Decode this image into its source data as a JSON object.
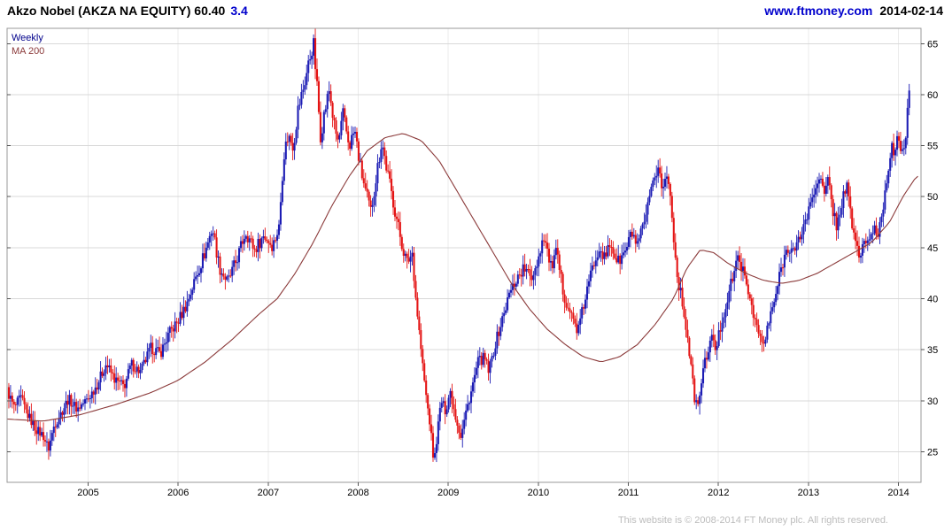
{
  "header": {
    "title": "Akzo Nobel (AKZA NA EQUITY) 60.40",
    "change": "3.4",
    "link": "www.ftmoney.com",
    "date": "2014-02-14"
  },
  "legend": {
    "weekly": "Weekly",
    "ma": "MA 200"
  },
  "footer": {
    "copyright": "This website is © 2008-2014 FT Money plc. All rights reserved."
  },
  "colors": {
    "up": "#1c1cb4",
    "down": "#e41414",
    "ma": "#8b3a3a",
    "grid_h": "#d8d8d8",
    "grid_v": "#ebebeb",
    "border": "#9a9a9a",
    "axis_text": "#000000",
    "tick": "#555555"
  },
  "chart_data": {
    "type": "candlestick",
    "title": "Akzo Nobel (AKZA NA EQUITY) weekly candlestick chart with 200-period moving average",
    "instrument": "AKZA NA EQUITY",
    "last_price": 60.4,
    "change": 3.4,
    "interval": "Weekly",
    "x_range": [
      2004.1,
      2014.25
    ],
    "y_range": [
      22.0,
      66.5
    ],
    "x_ticks": [
      2005,
      2006,
      2007,
      2008,
      2009,
      2010,
      2011,
      2012,
      2013,
      2014
    ],
    "y_ticks": [
      25,
      30,
      35,
      40,
      45,
      50,
      55,
      60,
      65
    ],
    "grid": true,
    "legend_position": "top-left",
    "series": [
      {
        "name": "Weekly",
        "type": "candlestick",
        "anchors": [
          [
            2004.1,
            31.0
          ],
          [
            2004.18,
            29.3
          ],
          [
            2004.25,
            30.3
          ],
          [
            2004.33,
            28.6
          ],
          [
            2004.42,
            27.2
          ],
          [
            2004.5,
            26.6
          ],
          [
            2004.56,
            25.3
          ],
          [
            2004.62,
            27.5
          ],
          [
            2004.7,
            28.8
          ],
          [
            2004.78,
            30.2
          ],
          [
            2004.88,
            29.2
          ],
          [
            2005.0,
            30.2
          ],
          [
            2005.1,
            31.6
          ],
          [
            2005.2,
            33.6
          ],
          [
            2005.3,
            32.0
          ],
          [
            2005.4,
            31.4
          ],
          [
            2005.48,
            33.6
          ],
          [
            2005.58,
            32.8
          ],
          [
            2005.7,
            35.2
          ],
          [
            2005.8,
            34.6
          ],
          [
            2005.9,
            36.6
          ],
          [
            2006.0,
            37.8
          ],
          [
            2006.1,
            39.6
          ],
          [
            2006.2,
            42.2
          ],
          [
            2006.3,
            44.6
          ],
          [
            2006.38,
            47.0
          ],
          [
            2006.46,
            43.0
          ],
          [
            2006.55,
            41.6
          ],
          [
            2006.65,
            43.8
          ],
          [
            2006.75,
            46.6
          ],
          [
            2006.85,
            44.8
          ],
          [
            2006.95,
            46.2
          ],
          [
            2007.05,
            45.2
          ],
          [
            2007.12,
            47.0
          ],
          [
            2007.17,
            54.0
          ],
          [
            2007.22,
            56.0
          ],
          [
            2007.28,
            55.0
          ],
          [
            2007.33,
            58.5
          ],
          [
            2007.4,
            61.0
          ],
          [
            2007.46,
            63.5
          ],
          [
            2007.5,
            65.2
          ],
          [
            2007.54,
            61.0
          ],
          [
            2007.58,
            56.0
          ],
          [
            2007.63,
            58.5
          ],
          [
            2007.68,
            60.5
          ],
          [
            2007.73,
            57.0
          ],
          [
            2007.78,
            55.2
          ],
          [
            2007.83,
            58.0
          ],
          [
            2007.9,
            55.0
          ],
          [
            2007.96,
            56.5
          ],
          [
            2008.02,
            53.0
          ],
          [
            2008.08,
            50.5
          ],
          [
            2008.14,
            48.5
          ],
          [
            2008.2,
            52.0
          ],
          [
            2008.26,
            55.5
          ],
          [
            2008.32,
            52.5
          ],
          [
            2008.4,
            49.0
          ],
          [
            2008.48,
            45.5
          ],
          [
            2008.54,
            43.5
          ],
          [
            2008.6,
            44.5
          ],
          [
            2008.64,
            40.0
          ],
          [
            2008.68,
            36.5
          ],
          [
            2008.72,
            33.0
          ],
          [
            2008.76,
            30.0
          ],
          [
            2008.8,
            27.5
          ],
          [
            2008.84,
            23.8
          ],
          [
            2008.88,
            27.0
          ],
          [
            2008.92,
            30.0
          ],
          [
            2008.97,
            29.0
          ],
          [
            2009.02,
            31.0
          ],
          [
            2009.08,
            28.5
          ],
          [
            2009.14,
            26.5
          ],
          [
            2009.2,
            29.0
          ],
          [
            2009.27,
            31.5
          ],
          [
            2009.33,
            33.8
          ],
          [
            2009.4,
            34.2
          ],
          [
            2009.45,
            32.8
          ],
          [
            2009.52,
            35.5
          ],
          [
            2009.6,
            38.0
          ],
          [
            2009.68,
            40.5
          ],
          [
            2009.76,
            42.0
          ],
          [
            2009.84,
            43.0
          ],
          [
            2009.92,
            42.0
          ],
          [
            2010.0,
            44.0
          ],
          [
            2010.06,
            46.3
          ],
          [
            2010.14,
            43.0
          ],
          [
            2010.2,
            44.5
          ],
          [
            2010.28,
            40.5
          ],
          [
            2010.36,
            38.5
          ],
          [
            2010.44,
            36.8
          ],
          [
            2010.52,
            40.0
          ],
          [
            2010.6,
            43.0
          ],
          [
            2010.68,
            45.3
          ],
          [
            2010.74,
            43.8
          ],
          [
            2010.8,
            45.5
          ],
          [
            2010.88,
            43.5
          ],
          [
            2010.96,
            44.5
          ],
          [
            2011.04,
            46.5
          ],
          [
            2011.1,
            45.0
          ],
          [
            2011.18,
            47.5
          ],
          [
            2011.26,
            50.5
          ],
          [
            2011.33,
            53.2
          ],
          [
            2011.38,
            50.5
          ],
          [
            2011.43,
            52.3
          ],
          [
            2011.48,
            49.0
          ],
          [
            2011.53,
            43.0
          ],
          [
            2011.58,
            40.5
          ],
          [
            2011.63,
            38.0
          ],
          [
            2011.68,
            34.5
          ],
          [
            2011.73,
            30.5
          ],
          [
            2011.77,
            29.2
          ],
          [
            2011.82,
            32.5
          ],
          [
            2011.87,
            34.5
          ],
          [
            2011.92,
            36.2
          ],
          [
            2011.97,
            35.0
          ],
          [
            2012.03,
            37.5
          ],
          [
            2012.1,
            40.0
          ],
          [
            2012.17,
            42.5
          ],
          [
            2012.23,
            44.3
          ],
          [
            2012.3,
            41.5
          ],
          [
            2012.37,
            39.5
          ],
          [
            2012.43,
            37.0
          ],
          [
            2012.5,
            35.3
          ],
          [
            2012.57,
            38.0
          ],
          [
            2012.64,
            40.5
          ],
          [
            2012.71,
            43.5
          ],
          [
            2012.78,
            45.3
          ],
          [
            2012.85,
            44.5
          ],
          [
            2012.92,
            46.5
          ],
          [
            2013.0,
            48.5
          ],
          [
            2013.06,
            50.5
          ],
          [
            2013.12,
            52.3
          ],
          [
            2013.17,
            50.0
          ],
          [
            2013.22,
            51.5
          ],
          [
            2013.27,
            48.8
          ],
          [
            2013.32,
            47.0
          ],
          [
            2013.37,
            49.5
          ],
          [
            2013.42,
            51.3
          ],
          [
            2013.47,
            48.0
          ],
          [
            2013.52,
            45.8
          ],
          [
            2013.57,
            43.8
          ],
          [
            2013.62,
            46.0
          ],
          [
            2013.67,
            45.0
          ],
          [
            2013.72,
            47.0
          ],
          [
            2013.77,
            46.3
          ],
          [
            2013.82,
            48.5
          ],
          [
            2013.87,
            52.0
          ],
          [
            2013.92,
            55.0
          ],
          [
            2013.96,
            53.8
          ],
          [
            2014.0,
            56.0
          ],
          [
            2014.04,
            54.5
          ],
          [
            2014.08,
            55.5
          ],
          [
            2014.12,
            60.4
          ]
        ]
      },
      {
        "name": "MA 200",
        "type": "line",
        "points": [
          [
            2004.1,
            28.2
          ],
          [
            2004.5,
            28.0
          ],
          [
            2004.9,
            28.6
          ],
          [
            2005.3,
            29.6
          ],
          [
            2005.7,
            30.8
          ],
          [
            2006.0,
            32.0
          ],
          [
            2006.3,
            33.8
          ],
          [
            2006.6,
            36.0
          ],
          [
            2006.9,
            38.5
          ],
          [
            2007.1,
            40.0
          ],
          [
            2007.3,
            42.5
          ],
          [
            2007.5,
            45.5
          ],
          [
            2007.7,
            49.0
          ],
          [
            2007.9,
            52.0
          ],
          [
            2008.1,
            54.5
          ],
          [
            2008.3,
            55.8
          ],
          [
            2008.5,
            56.2
          ],
          [
            2008.7,
            55.5
          ],
          [
            2008.9,
            53.5
          ],
          [
            2009.1,
            50.5
          ],
          [
            2009.3,
            47.5
          ],
          [
            2009.5,
            44.5
          ],
          [
            2009.7,
            41.5
          ],
          [
            2009.9,
            39.0
          ],
          [
            2010.1,
            37.0
          ],
          [
            2010.3,
            35.5
          ],
          [
            2010.5,
            34.3
          ],
          [
            2010.7,
            33.8
          ],
          [
            2010.9,
            34.3
          ],
          [
            2011.1,
            35.5
          ],
          [
            2011.3,
            37.5
          ],
          [
            2011.5,
            40.0
          ],
          [
            2011.65,
            43.0
          ],
          [
            2011.8,
            44.8
          ],
          [
            2011.95,
            44.5
          ],
          [
            2012.1,
            43.5
          ],
          [
            2012.3,
            42.5
          ],
          [
            2012.5,
            41.8
          ],
          [
            2012.7,
            41.5
          ],
          [
            2012.9,
            41.8
          ],
          [
            2013.1,
            42.5
          ],
          [
            2013.3,
            43.5
          ],
          [
            2013.5,
            44.5
          ],
          [
            2013.7,
            45.5
          ],
          [
            2013.9,
            47.5
          ],
          [
            2014.05,
            50.0
          ],
          [
            2014.2,
            52.0
          ]
        ]
      }
    ]
  }
}
